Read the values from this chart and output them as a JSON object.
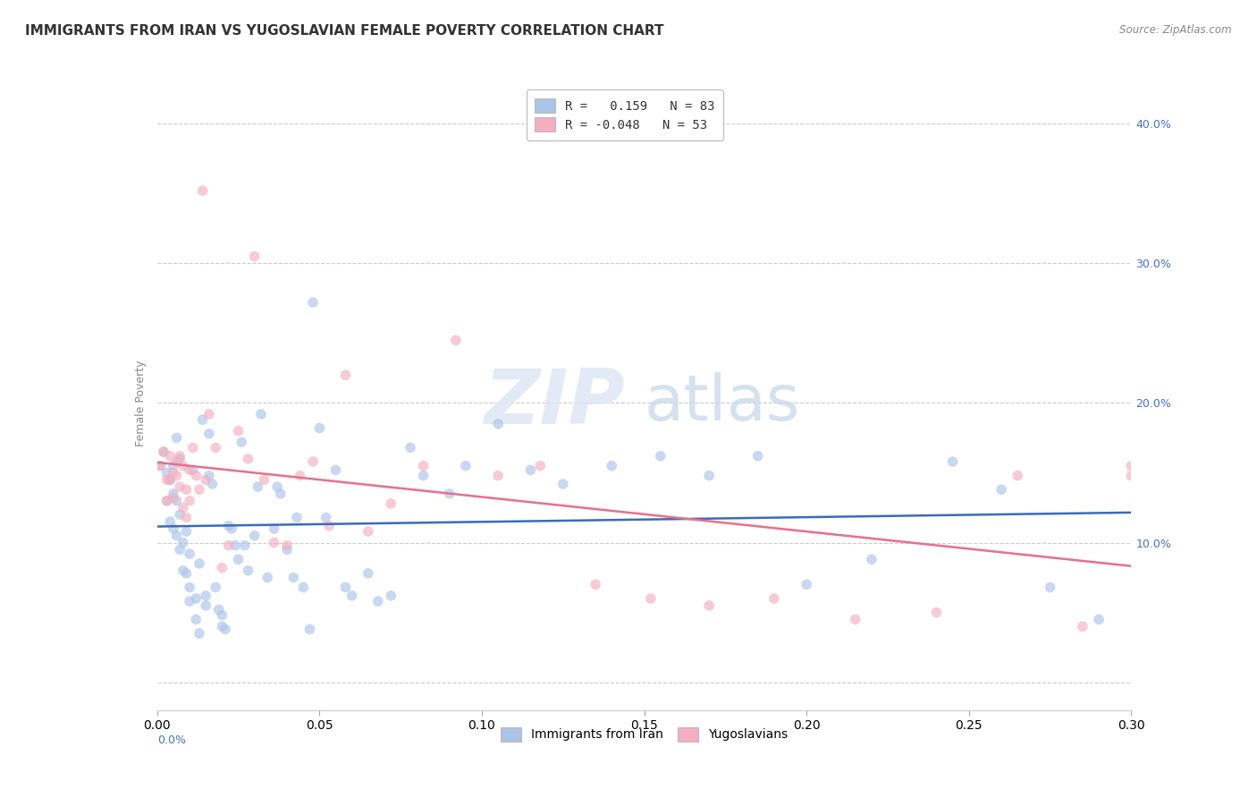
{
  "title": "IMMIGRANTS FROM IRAN VS YUGOSLAVIAN FEMALE POVERTY CORRELATION CHART",
  "source": "Source: ZipAtlas.com",
  "ylabel": "Female Poverty",
  "yticks": [
    0.0,
    0.1,
    0.2,
    0.3,
    0.4
  ],
  "ytick_labels": [
    "",
    "10.0%",
    "20.0%",
    "30.0%",
    "40.0%"
  ],
  "xlim": [
    0.0,
    0.3
  ],
  "ylim": [
    -0.02,
    0.42
  ],
  "xticks": [
    0.0,
    0.05,
    0.1,
    0.15,
    0.2,
    0.25,
    0.3
  ],
  "legend_entries": [
    {
      "label": "R =   0.159   N = 83",
      "color": "#aac4e8"
    },
    {
      "label": "R = -0.048   N = 53",
      "color": "#f4aec0"
    }
  ],
  "legend_label_blue": "Immigrants from Iran",
  "legend_label_pink": "Yugoslavians",
  "iran_color": "#aac4e8",
  "yugo_color": "#f4aec0",
  "trend_iran_color": "#3a6bbf",
  "trend_yugo_color": "#e8708a",
  "background_color": "#ffffff",
  "iran_x": [
    0.001,
    0.002,
    0.003,
    0.003,
    0.004,
    0.004,
    0.005,
    0.005,
    0.005,
    0.006,
    0.006,
    0.006,
    0.007,
    0.007,
    0.007,
    0.008,
    0.008,
    0.009,
    0.009,
    0.01,
    0.01,
    0.01,
    0.011,
    0.012,
    0.012,
    0.013,
    0.013,
    0.014,
    0.015,
    0.015,
    0.016,
    0.016,
    0.017,
    0.018,
    0.019,
    0.02,
    0.02,
    0.021,
    0.022,
    0.023,
    0.024,
    0.025,
    0.026,
    0.027,
    0.028,
    0.03,
    0.031,
    0.032,
    0.034,
    0.036,
    0.037,
    0.038,
    0.04,
    0.042,
    0.043,
    0.045,
    0.047,
    0.048,
    0.05,
    0.052,
    0.055,
    0.058,
    0.06,
    0.065,
    0.068,
    0.072,
    0.078,
    0.082,
    0.09,
    0.095,
    0.105,
    0.115,
    0.125,
    0.14,
    0.155,
    0.17,
    0.185,
    0.2,
    0.22,
    0.245,
    0.26,
    0.275,
    0.29
  ],
  "iran_y": [
    0.155,
    0.165,
    0.15,
    0.13,
    0.145,
    0.115,
    0.155,
    0.11,
    0.135,
    0.175,
    0.105,
    0.13,
    0.16,
    0.095,
    0.12,
    0.1,
    0.08,
    0.108,
    0.078,
    0.092,
    0.068,
    0.058,
    0.152,
    0.06,
    0.045,
    0.035,
    0.085,
    0.188,
    0.062,
    0.055,
    0.178,
    0.148,
    0.142,
    0.068,
    0.052,
    0.048,
    0.04,
    0.038,
    0.112,
    0.11,
    0.098,
    0.088,
    0.172,
    0.098,
    0.08,
    0.105,
    0.14,
    0.192,
    0.075,
    0.11,
    0.14,
    0.135,
    0.095,
    0.075,
    0.118,
    0.068,
    0.038,
    0.272,
    0.182,
    0.118,
    0.152,
    0.068,
    0.062,
    0.078,
    0.058,
    0.062,
    0.168,
    0.148,
    0.135,
    0.155,
    0.185,
    0.152,
    0.142,
    0.155,
    0.162,
    0.148,
    0.162,
    0.07,
    0.088,
    0.158,
    0.138,
    0.068,
    0.045
  ],
  "yugo_x": [
    0.001,
    0.002,
    0.003,
    0.003,
    0.004,
    0.004,
    0.005,
    0.005,
    0.006,
    0.006,
    0.007,
    0.007,
    0.008,
    0.008,
    0.009,
    0.009,
    0.01,
    0.01,
    0.011,
    0.012,
    0.013,
    0.014,
    0.015,
    0.016,
    0.018,
    0.02,
    0.022,
    0.025,
    0.028,
    0.03,
    0.033,
    0.036,
    0.04,
    0.044,
    0.048,
    0.053,
    0.058,
    0.065,
    0.072,
    0.082,
    0.092,
    0.105,
    0.118,
    0.135,
    0.152,
    0.17,
    0.19,
    0.215,
    0.24,
    0.265,
    0.285,
    0.3,
    0.3
  ],
  "yugo_y": [
    0.155,
    0.165,
    0.145,
    0.13,
    0.162,
    0.145,
    0.15,
    0.132,
    0.148,
    0.158,
    0.162,
    0.14,
    0.155,
    0.125,
    0.138,
    0.118,
    0.152,
    0.13,
    0.168,
    0.148,
    0.138,
    0.352,
    0.145,
    0.192,
    0.168,
    0.082,
    0.098,
    0.18,
    0.16,
    0.305,
    0.145,
    0.1,
    0.098,
    0.148,
    0.158,
    0.112,
    0.22,
    0.108,
    0.128,
    0.155,
    0.245,
    0.148,
    0.155,
    0.07,
    0.06,
    0.055,
    0.06,
    0.045,
    0.05,
    0.148,
    0.04,
    0.155,
    0.148
  ],
  "watermark_zip": "ZIP",
  "watermark_atlas": "atlas",
  "title_fontsize": 11,
  "axis_label_fontsize": 9,
  "tick_fontsize": 9,
  "legend_fontsize": 10,
  "scatter_size": 70,
  "scatter_alpha": 0.65,
  "grid_color": "#cccccc",
  "grid_style": "--",
  "right_yaxis_color": "#4472c4",
  "left_label_color": "#888888",
  "bottom_label_color": "#4472c4"
}
